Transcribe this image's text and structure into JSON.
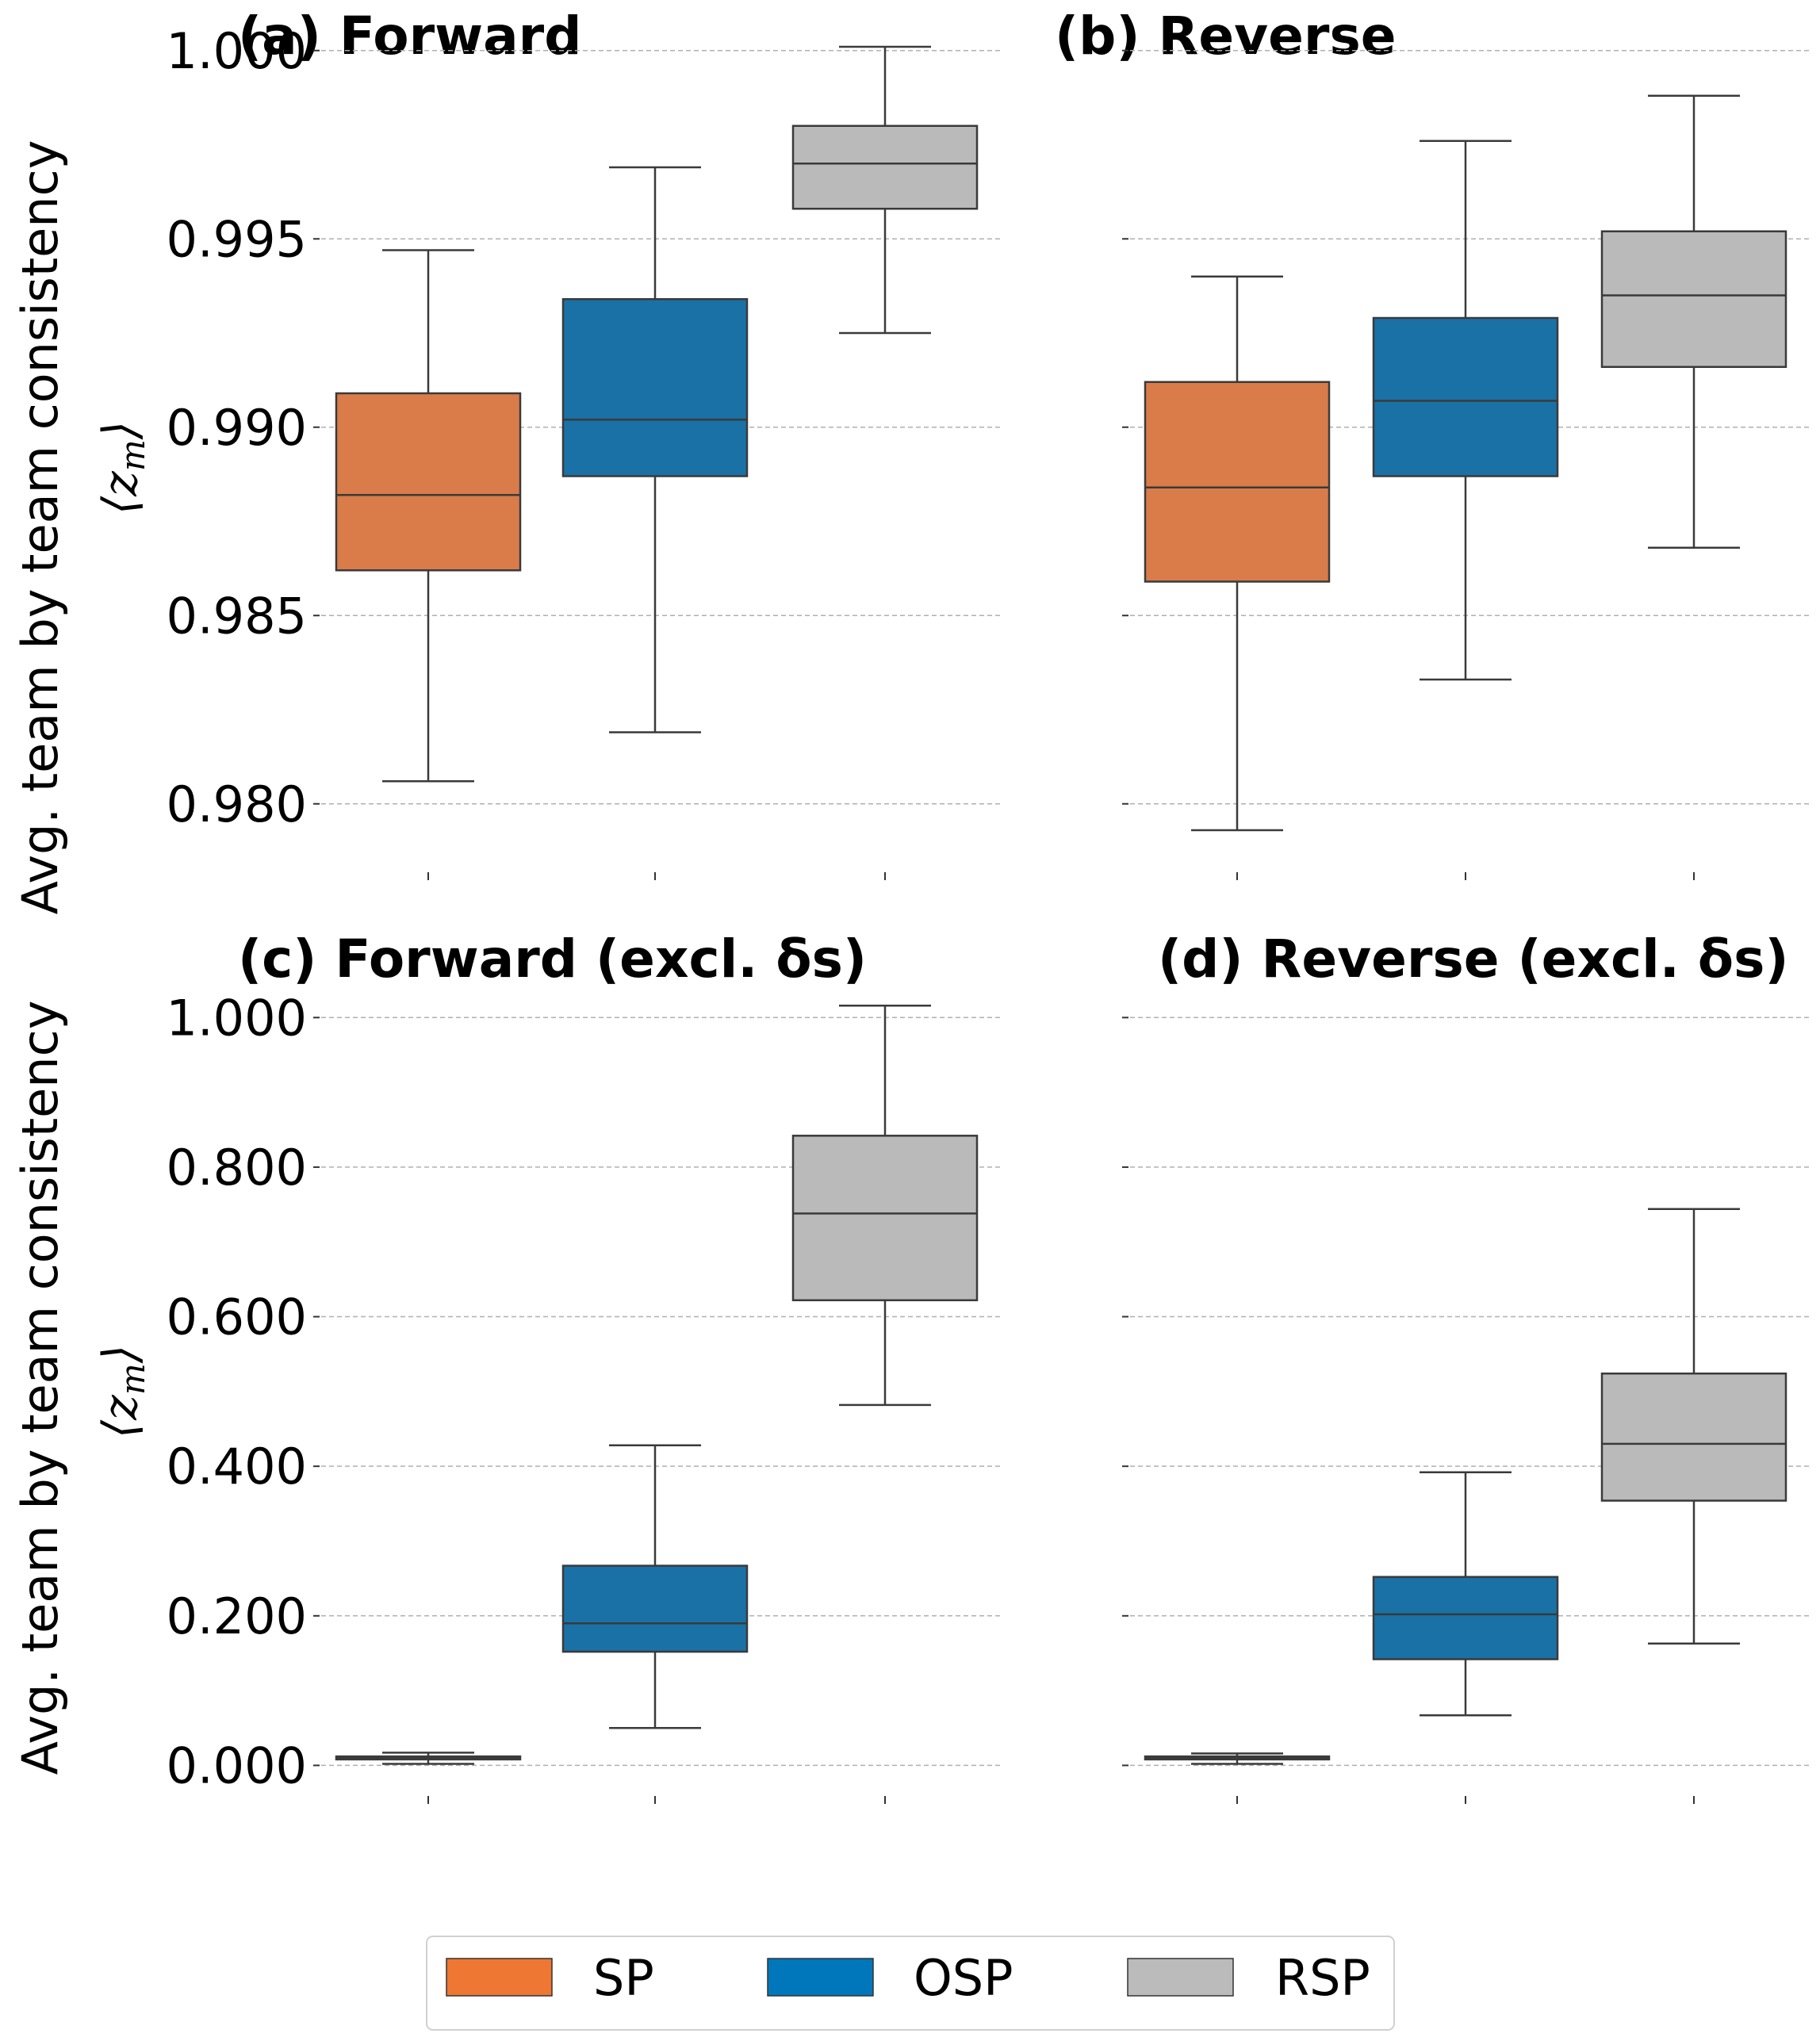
{
  "colors": {
    "SP": "#D97C4A",
    "OSP": "#1A71A6",
    "RSP": "#BABABA",
    "legend_SP": "#EE7733",
    "legend_OSP": "#0077BB",
    "legend_RSP": "#BBBBBB"
  },
  "ylabel": "Avg. team by team consistency",
  "ylabel_symbol": "⟨z",
  "ylabel_symbol_sub": "m",
  "ylabel_symbol_close": "⟩",
  "legend": {
    "items": [
      "SP",
      "OSP",
      "RSP"
    ]
  },
  "chart_data": [
    {
      "type": "box",
      "title": "(a) Forward",
      "ylim": [
        0.9785,
        1.0005
      ],
      "yticks": [
        0.98,
        0.985,
        0.99,
        0.995,
        1.0
      ],
      "ytick_labels": [
        "0.980",
        "0.985",
        "0.990",
        "0.995",
        "1.000"
      ],
      "show_ytick_labels": true,
      "series": [
        {
          "name": "SP",
          "whisker_low": 0.9806,
          "q1": 0.9862,
          "median": 0.9882,
          "q3": 0.9909,
          "whisker_high": 0.9947
        },
        {
          "name": "OSP",
          "whisker_low": 0.9819,
          "q1": 0.9887,
          "median": 0.9902,
          "q3": 0.9934,
          "whisker_high": 0.9969
        },
        {
          "name": "RSP",
          "whisker_low": 0.9925,
          "q1": 0.9958,
          "median": 0.997,
          "q3": 0.998,
          "whisker_high": 1.0001
        }
      ]
    },
    {
      "type": "box",
      "title": "(b) Reverse",
      "ylim": [
        0.9785,
        1.0005
      ],
      "yticks": [
        0.98,
        0.985,
        0.99,
        0.995,
        1.0
      ],
      "ytick_labels": [
        "0.980",
        "0.985",
        "0.990",
        "0.995",
        "1.000"
      ],
      "show_ytick_labels": false,
      "series": [
        {
          "name": "SP",
          "whisker_low": 0.9793,
          "q1": 0.9859,
          "median": 0.9884,
          "q3": 0.9912,
          "whisker_high": 0.994
        },
        {
          "name": "OSP",
          "whisker_low": 0.9833,
          "q1": 0.9887,
          "median": 0.9907,
          "q3": 0.9929,
          "whisker_high": 0.9976
        },
        {
          "name": "RSP",
          "whisker_low": 0.9868,
          "q1": 0.9916,
          "median": 0.9935,
          "q3": 0.9952,
          "whisker_high": 0.9988
        }
      ]
    },
    {
      "type": "box",
      "title": "(c) Forward (excl. δs)",
      "ylim": [
        -0.025,
        1.03
      ],
      "yticks": [
        0.0,
        0.2,
        0.4,
        0.6,
        0.8,
        1.0
      ],
      "ytick_labels": [
        "0.000",
        "0.200",
        "0.400",
        "0.600",
        "0.800",
        "1.000"
      ],
      "show_ytick_labels": true,
      "series": [
        {
          "name": "SP",
          "whisker_low": 0.002,
          "q1": 0.008,
          "median": 0.01,
          "q3": 0.012,
          "whisker_high": 0.017
        },
        {
          "name": "OSP",
          "whisker_low": 0.05,
          "q1": 0.152,
          "median": 0.19,
          "q3": 0.267,
          "whisker_high": 0.428
        },
        {
          "name": "RSP",
          "whisker_low": 0.482,
          "q1": 0.622,
          "median": 0.738,
          "q3": 0.842,
          "whisker_high": 1.016
        }
      ]
    },
    {
      "type": "box",
      "title": "(d) Reverse (excl. δs)",
      "ylim": [
        -0.025,
        1.03
      ],
      "yticks": [
        0.0,
        0.2,
        0.4,
        0.6,
        0.8,
        1.0
      ],
      "ytick_labels": [
        "0.000",
        "0.200",
        "0.400",
        "0.600",
        "0.800",
        "1.000"
      ],
      "show_ytick_labels": false,
      "series": [
        {
          "name": "SP",
          "whisker_low": 0.002,
          "q1": 0.008,
          "median": 0.01,
          "q3": 0.012,
          "whisker_high": 0.016
        },
        {
          "name": "OSP",
          "whisker_low": 0.067,
          "q1": 0.142,
          "median": 0.202,
          "q3": 0.252,
          "whisker_high": 0.392
        },
        {
          "name": "RSP",
          "whisker_low": 0.163,
          "q1": 0.354,
          "median": 0.43,
          "q3": 0.524,
          "whisker_high": 0.744
        }
      ]
    }
  ]
}
